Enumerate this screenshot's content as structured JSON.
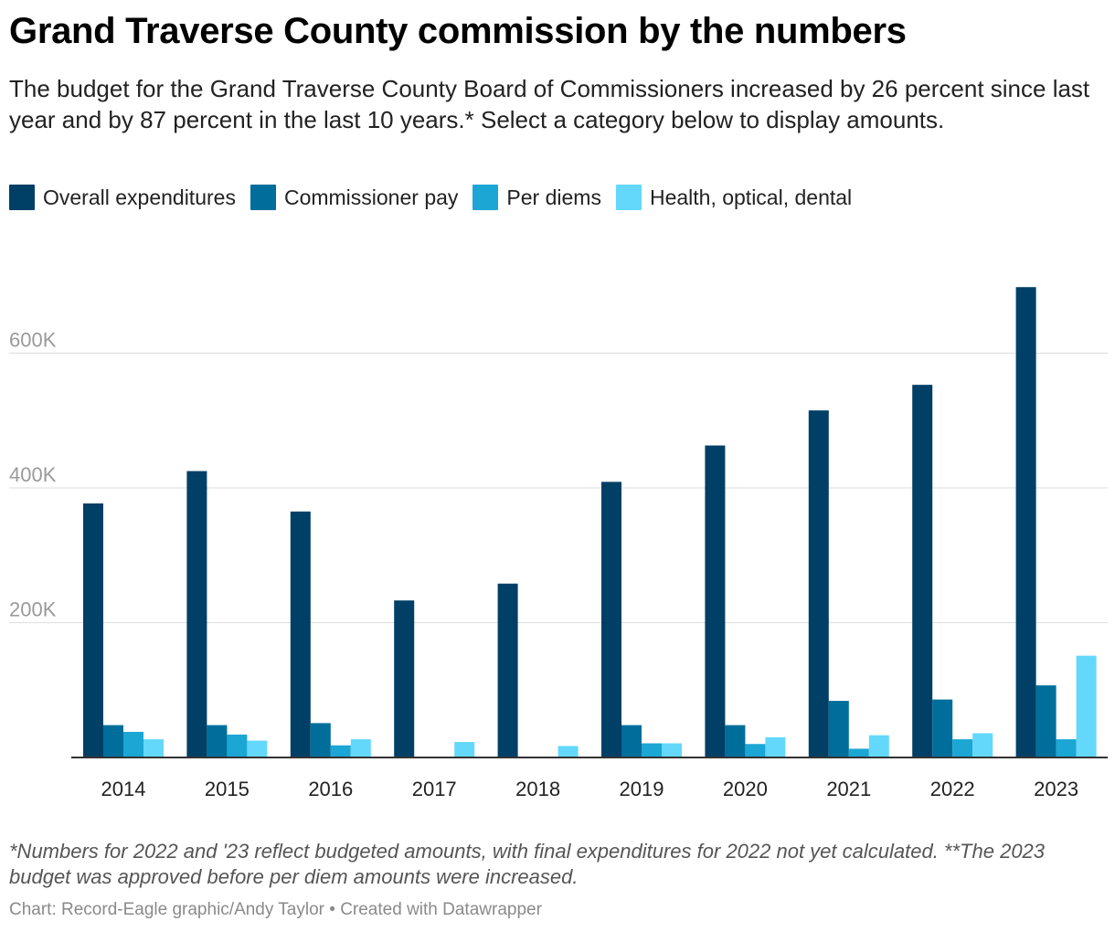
{
  "header": {
    "title": "Grand Traverse County commission by the numbers",
    "description": "The budget for the Grand Traverse County Board of Commissioners increased by 26 percent since last year and by 87 percent in the last 10 years.* Select a category below to display amounts."
  },
  "legend": [
    {
      "label": "Overall expenditures",
      "color": "#003f66"
    },
    {
      "label": "Commissioner pay",
      "color": "#006e9b"
    },
    {
      "label": "Per diems",
      "color": "#1ba6d4"
    },
    {
      "label": "Health, optical, dental",
      "color": "#63d8fb"
    }
  ],
  "chart_data": {
    "type": "bar",
    "title": "Grand Traverse County commission by the numbers",
    "xlabel": "",
    "ylabel": "",
    "ylim": [
      0,
      700000
    ],
    "y_ticks": [
      200000,
      400000,
      600000
    ],
    "y_tick_labels": [
      "200K",
      "400K",
      "600K"
    ],
    "grid": true,
    "legend_position": "top-left",
    "categories": [
      "2014",
      "2015",
      "2016",
      "2017",
      "2018",
      "2019",
      "2020",
      "2021",
      "2022",
      "2023"
    ],
    "series": [
      {
        "name": "Overall expenditures",
        "color": "#003f66",
        "values": [
          377000,
          425000,
          365000,
          233000,
          258000,
          409000,
          463000,
          515000,
          553000,
          698000
        ]
      },
      {
        "name": "Commissioner pay",
        "color": "#006e9b",
        "values": [
          48000,
          48000,
          51000,
          0,
          0,
          48000,
          48000,
          84000,
          86000,
          107000
        ]
      },
      {
        "name": "Per diems",
        "color": "#1ba6d4",
        "values": [
          38000,
          34000,
          18000,
          0,
          0,
          21000,
          20000,
          13000,
          27000,
          27000
        ]
      },
      {
        "name": "Health, optical, dental",
        "color": "#63d8fb",
        "values": [
          27000,
          25000,
          27000,
          23000,
          17000,
          21000,
          30000,
          33000,
          36000,
          151000
        ]
      }
    ]
  },
  "footer": {
    "notes": "*Numbers for 2022 and '23 reflect budgeted amounts, with final expenditures for 2022 not yet calculated. **The 2023 budget was approved before per diem amounts were increased.",
    "credit": "Chart: Record-Eagle graphic/Andy Taylor • Created with Datawrapper"
  }
}
